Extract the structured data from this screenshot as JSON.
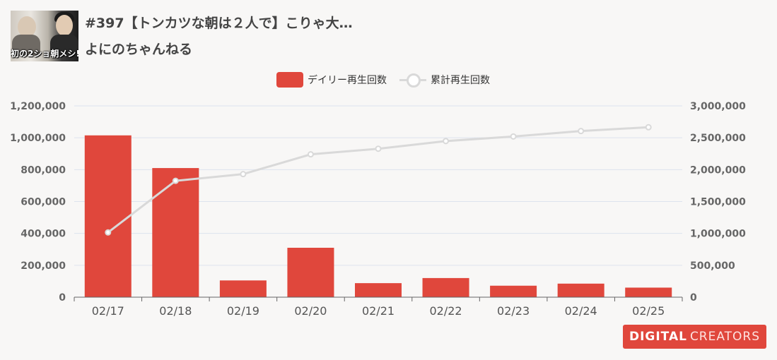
{
  "video": {
    "thumbnail_caption": "初の2ショ朝メシ!?",
    "title": "#397【トンカツな朝は２人で】こりゃ大…",
    "channel": "よにのちゃんねる"
  },
  "legend": {
    "daily_label": "デイリー再生回数",
    "cumulative_label": "累計再生回数"
  },
  "colors": {
    "bar": "#e0473c",
    "line": "#d9d9d9",
    "grid": "#dde3ee",
    "axis_text": "#666666",
    "background": "#f8f7f6"
  },
  "logo": {
    "bold_text": "DIGITAL",
    "light_text": "CREATORS"
  },
  "chart_data": {
    "type": "bar",
    "categories": [
      "02/17",
      "02/18",
      "02/19",
      "02/20",
      "02/21",
      "02/22",
      "02/23",
      "02/24",
      "02/25"
    ],
    "series": [
      {
        "name": "デイリー再生回数",
        "type": "bar",
        "axis": "left",
        "values": [
          1015000,
          810000,
          105000,
          310000,
          88000,
          120000,
          72000,
          85000,
          60000
        ]
      },
      {
        "name": "累計再生回数",
        "type": "line",
        "axis": "right",
        "values": [
          1015000,
          1825000,
          1930000,
          2240000,
          2328000,
          2448000,
          2520000,
          2605000,
          2665000
        ]
      }
    ],
    "y_left": {
      "range": [
        0,
        1200000
      ],
      "ticks": [
        "0",
        "200,000",
        "400,000",
        "600,000",
        "800,000",
        "1,000,000",
        "1,200,000"
      ]
    },
    "y_right": {
      "range": [
        0,
        3000000
      ],
      "ticks": [
        "0",
        "500,000",
        "1,000,000",
        "1,500,000",
        "2,000,000",
        "2,500,000",
        "3,000,000"
      ]
    },
    "grid": true,
    "legend_position": "top-center"
  }
}
